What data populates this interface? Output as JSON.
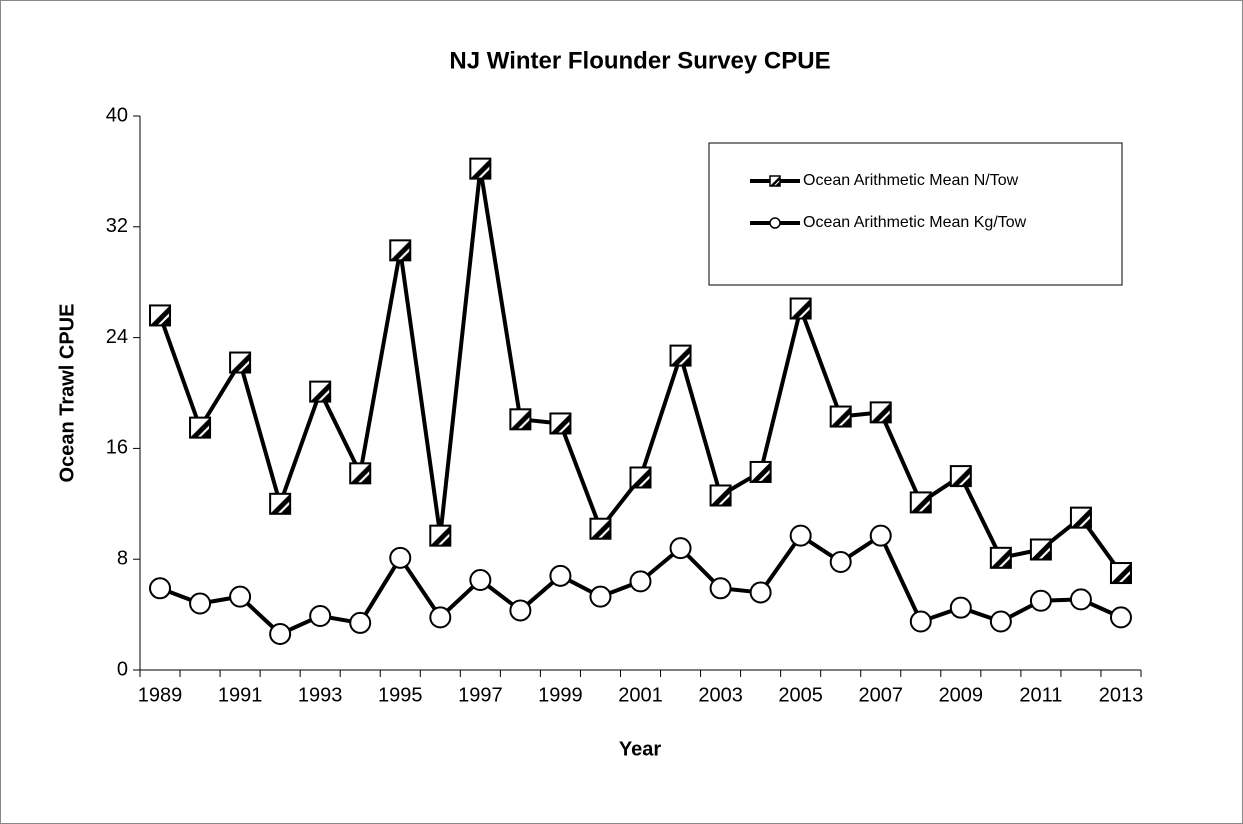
{
  "chart_data": {
    "type": "line",
    "title": "NJ Winter Flounder Survey CPUE",
    "x_label": "Year",
    "y_label": "Ocean Trawl CPUE",
    "categories": [
      "1989",
      null,
      "1991",
      null,
      "1993",
      null,
      "1995",
      null,
      "1997",
      null,
      "1999",
      null,
      "2001",
      null,
      "2003",
      null,
      "2005",
      null,
      "2007",
      null,
      "2009",
      null,
      "2011",
      null,
      "2013"
    ],
    "series": [
      {
        "name": "Ocean Arithmetic Mean N/Tow",
        "color": "#000000",
        "marker": "square",
        "values": [
          25.6,
          17.5,
          22.2,
          12.0,
          20.1,
          14.2,
          30.3,
          9.7,
          36.2,
          18.1,
          17.8,
          10.2,
          13.9,
          22.7,
          12.6,
          14.3,
          26.1,
          18.3,
          18.6,
          12.1,
          14.0,
          8.1,
          8.7,
          11.0,
          7.0
        ]
      },
      {
        "name": "Ocean Arithmetic Mean Kg/Tow",
        "color": "#000000",
        "marker": "circle",
        "values": [
          5.9,
          4.8,
          5.3,
          2.6,
          3.9,
          3.4,
          8.1,
          3.8,
          6.5,
          4.3,
          6.8,
          5.3,
          6.4,
          8.8,
          5.9,
          5.6,
          9.7,
          7.8,
          9.7,
          3.5,
          4.5,
          3.5,
          5.0,
          5.1,
          3.8
        ]
      }
    ],
    "ylim": [
      0,
      40
    ],
    "yticks": [
      0,
      8,
      16,
      24,
      32,
      40
    ],
    "grid": false,
    "legend": "top-right"
  }
}
